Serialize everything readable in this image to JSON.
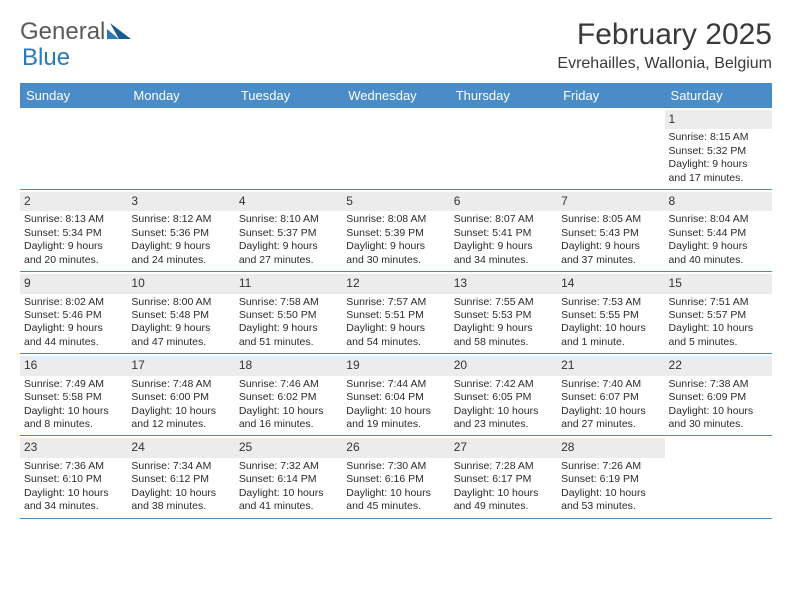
{
  "brand": {
    "word1": "General",
    "word2": "Blue"
  },
  "title": "February 2025",
  "location": "Evrehailles, Wallonia, Belgium",
  "colors": {
    "header_bg": "#4a8cc7",
    "header_text": "#ffffff",
    "daynum_bg": "#ececec",
    "border": "#4a8cc7",
    "brand_gray": "#5a5a5a",
    "brand_blue": "#2a7ab8"
  },
  "days_of_week": [
    "Sunday",
    "Monday",
    "Tuesday",
    "Wednesday",
    "Thursday",
    "Friday",
    "Saturday"
  ],
  "weeks": [
    [
      null,
      null,
      null,
      null,
      null,
      null,
      {
        "n": "1",
        "sr": "Sunrise: 8:15 AM",
        "ss": "Sunset: 5:32 PM",
        "d1": "Daylight: 9 hours",
        "d2": "and 17 minutes."
      }
    ],
    [
      {
        "n": "2",
        "sr": "Sunrise: 8:13 AM",
        "ss": "Sunset: 5:34 PM",
        "d1": "Daylight: 9 hours",
        "d2": "and 20 minutes."
      },
      {
        "n": "3",
        "sr": "Sunrise: 8:12 AM",
        "ss": "Sunset: 5:36 PM",
        "d1": "Daylight: 9 hours",
        "d2": "and 24 minutes."
      },
      {
        "n": "4",
        "sr": "Sunrise: 8:10 AM",
        "ss": "Sunset: 5:37 PM",
        "d1": "Daylight: 9 hours",
        "d2": "and 27 minutes."
      },
      {
        "n": "5",
        "sr": "Sunrise: 8:08 AM",
        "ss": "Sunset: 5:39 PM",
        "d1": "Daylight: 9 hours",
        "d2": "and 30 minutes."
      },
      {
        "n": "6",
        "sr": "Sunrise: 8:07 AM",
        "ss": "Sunset: 5:41 PM",
        "d1": "Daylight: 9 hours",
        "d2": "and 34 minutes."
      },
      {
        "n": "7",
        "sr": "Sunrise: 8:05 AM",
        "ss": "Sunset: 5:43 PM",
        "d1": "Daylight: 9 hours",
        "d2": "and 37 minutes."
      },
      {
        "n": "8",
        "sr": "Sunrise: 8:04 AM",
        "ss": "Sunset: 5:44 PM",
        "d1": "Daylight: 9 hours",
        "d2": "and 40 minutes."
      }
    ],
    [
      {
        "n": "9",
        "sr": "Sunrise: 8:02 AM",
        "ss": "Sunset: 5:46 PM",
        "d1": "Daylight: 9 hours",
        "d2": "and 44 minutes."
      },
      {
        "n": "10",
        "sr": "Sunrise: 8:00 AM",
        "ss": "Sunset: 5:48 PM",
        "d1": "Daylight: 9 hours",
        "d2": "and 47 minutes."
      },
      {
        "n": "11",
        "sr": "Sunrise: 7:58 AM",
        "ss": "Sunset: 5:50 PM",
        "d1": "Daylight: 9 hours",
        "d2": "and 51 minutes."
      },
      {
        "n": "12",
        "sr": "Sunrise: 7:57 AM",
        "ss": "Sunset: 5:51 PM",
        "d1": "Daylight: 9 hours",
        "d2": "and 54 minutes."
      },
      {
        "n": "13",
        "sr": "Sunrise: 7:55 AM",
        "ss": "Sunset: 5:53 PM",
        "d1": "Daylight: 9 hours",
        "d2": "and 58 minutes."
      },
      {
        "n": "14",
        "sr": "Sunrise: 7:53 AM",
        "ss": "Sunset: 5:55 PM",
        "d1": "Daylight: 10 hours",
        "d2": "and 1 minute."
      },
      {
        "n": "15",
        "sr": "Sunrise: 7:51 AM",
        "ss": "Sunset: 5:57 PM",
        "d1": "Daylight: 10 hours",
        "d2": "and 5 minutes."
      }
    ],
    [
      {
        "n": "16",
        "sr": "Sunrise: 7:49 AM",
        "ss": "Sunset: 5:58 PM",
        "d1": "Daylight: 10 hours",
        "d2": "and 8 minutes."
      },
      {
        "n": "17",
        "sr": "Sunrise: 7:48 AM",
        "ss": "Sunset: 6:00 PM",
        "d1": "Daylight: 10 hours",
        "d2": "and 12 minutes."
      },
      {
        "n": "18",
        "sr": "Sunrise: 7:46 AM",
        "ss": "Sunset: 6:02 PM",
        "d1": "Daylight: 10 hours",
        "d2": "and 16 minutes."
      },
      {
        "n": "19",
        "sr": "Sunrise: 7:44 AM",
        "ss": "Sunset: 6:04 PM",
        "d1": "Daylight: 10 hours",
        "d2": "and 19 minutes."
      },
      {
        "n": "20",
        "sr": "Sunrise: 7:42 AM",
        "ss": "Sunset: 6:05 PM",
        "d1": "Daylight: 10 hours",
        "d2": "and 23 minutes."
      },
      {
        "n": "21",
        "sr": "Sunrise: 7:40 AM",
        "ss": "Sunset: 6:07 PM",
        "d1": "Daylight: 10 hours",
        "d2": "and 27 minutes."
      },
      {
        "n": "22",
        "sr": "Sunrise: 7:38 AM",
        "ss": "Sunset: 6:09 PM",
        "d1": "Daylight: 10 hours",
        "d2": "and 30 minutes."
      }
    ],
    [
      {
        "n": "23",
        "sr": "Sunrise: 7:36 AM",
        "ss": "Sunset: 6:10 PM",
        "d1": "Daylight: 10 hours",
        "d2": "and 34 minutes."
      },
      {
        "n": "24",
        "sr": "Sunrise: 7:34 AM",
        "ss": "Sunset: 6:12 PM",
        "d1": "Daylight: 10 hours",
        "d2": "and 38 minutes."
      },
      {
        "n": "25",
        "sr": "Sunrise: 7:32 AM",
        "ss": "Sunset: 6:14 PM",
        "d1": "Daylight: 10 hours",
        "d2": "and 41 minutes."
      },
      {
        "n": "26",
        "sr": "Sunrise: 7:30 AM",
        "ss": "Sunset: 6:16 PM",
        "d1": "Daylight: 10 hours",
        "d2": "and 45 minutes."
      },
      {
        "n": "27",
        "sr": "Sunrise: 7:28 AM",
        "ss": "Sunset: 6:17 PM",
        "d1": "Daylight: 10 hours",
        "d2": "and 49 minutes."
      },
      {
        "n": "28",
        "sr": "Sunrise: 7:26 AM",
        "ss": "Sunset: 6:19 PM",
        "d1": "Daylight: 10 hours",
        "d2": "and 53 minutes."
      },
      null
    ]
  ]
}
